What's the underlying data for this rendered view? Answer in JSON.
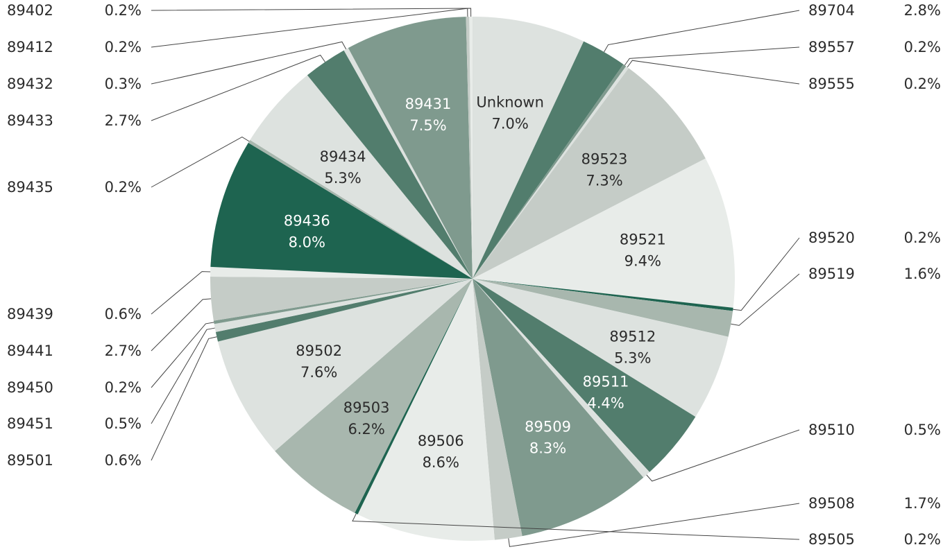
{
  "chart_data": {
    "type": "pie",
    "title": "",
    "slices": [
      {
        "label": "Unknown",
        "pct": "7.0%",
        "value": 7.0,
        "color": "#dde2df",
        "text_color": "#2b2b2b",
        "label_mode": "inside"
      },
      {
        "label": "89704",
        "pct": "2.8%",
        "value": 2.8,
        "color": "#527d6d",
        "text_color": "#2b2b2b",
        "label_mode": "right"
      },
      {
        "label": "89557",
        "pct": "0.2%",
        "value": 0.2,
        "color": "#7f9a8e",
        "text_color": "#2b2b2b",
        "label_mode": "right"
      },
      {
        "label": "89555",
        "pct": "0.2%",
        "value": 0.2,
        "color": "#dde2df",
        "text_color": "#2b2b2b",
        "label_mode": "right"
      },
      {
        "label": "89523",
        "pct": "7.3%",
        "value": 7.3,
        "color": "#c5ccc7",
        "text_color": "#2b2b2b",
        "label_mode": "inside"
      },
      {
        "label": "89521",
        "pct": "9.4%",
        "value": 9.4,
        "color": "#e8ece9",
        "text_color": "#2b2b2b",
        "label_mode": "inside"
      },
      {
        "label": "89520",
        "pct": "0.2%",
        "value": 0.2,
        "color": "#1e6450",
        "text_color": "#2b2b2b",
        "label_mode": "right"
      },
      {
        "label": "89519",
        "pct": "1.6%",
        "value": 1.6,
        "color": "#a8b7ae",
        "text_color": "#2b2b2b",
        "label_mode": "right"
      },
      {
        "label": "89512",
        "pct": "5.3%",
        "value": 5.3,
        "color": "#dde2df",
        "text_color": "#2b2b2b",
        "label_mode": "inside"
      },
      {
        "label": "89511",
        "pct": "4.4%",
        "value": 4.4,
        "color": "#527d6d",
        "text_color": "#ffffff",
        "label_mode": "inside"
      },
      {
        "label": "89510",
        "pct": "0.5%",
        "value": 0.5,
        "color": "#dde2df",
        "text_color": "#2b2b2b",
        "label_mode": "right"
      },
      {
        "label": "89509",
        "pct": "8.3%",
        "value": 8.3,
        "color": "#7f9a8e",
        "text_color": "#ffffff",
        "label_mode": "inside"
      },
      {
        "label": "89508",
        "pct": "1.7%",
        "value": 1.7,
        "color": "#c5ccc7",
        "text_color": "#2b2b2b",
        "label_mode": "right"
      },
      {
        "label": "89506",
        "pct": "8.6%",
        "value": 8.6,
        "color": "#e8ece9",
        "text_color": "#2b2b2b",
        "label_mode": "inside"
      },
      {
        "label": "89505",
        "pct": "0.2%",
        "value": 0.2,
        "color": "#1e6450",
        "text_color": "#2b2b2b",
        "label_mode": "right"
      },
      {
        "label": "89503",
        "pct": "6.2%",
        "value": 6.2,
        "color": "#a8b7ae",
        "text_color": "#2b2b2b",
        "label_mode": "inside"
      },
      {
        "label": "89502",
        "pct": "7.6%",
        "value": 7.6,
        "color": "#dde2df",
        "text_color": "#2b2b2b",
        "label_mode": "inside"
      },
      {
        "label": "89501",
        "pct": "0.6%",
        "value": 0.6,
        "color": "#527d6d",
        "text_color": "#2b2b2b",
        "label_mode": "left"
      },
      {
        "label": "89451",
        "pct": "0.5%",
        "value": 0.5,
        "color": "#dde2df",
        "text_color": "#2b2b2b",
        "label_mode": "left"
      },
      {
        "label": "89450",
        "pct": "0.2%",
        "value": 0.2,
        "color": "#7f9a8e",
        "text_color": "#2b2b2b",
        "label_mode": "left"
      },
      {
        "label": "89441",
        "pct": "2.7%",
        "value": 2.7,
        "color": "#c5ccc7",
        "text_color": "#2b2b2b",
        "label_mode": "left"
      },
      {
        "label": "89439",
        "pct": "0.6%",
        "value": 0.6,
        "color": "#e8ece9",
        "text_color": "#2b2b2b",
        "label_mode": "left"
      },
      {
        "label": "89436",
        "pct": "8.0%",
        "value": 8.0,
        "color": "#1e6450",
        "text_color": "#ffffff",
        "label_mode": "inside"
      },
      {
        "label": "89435",
        "pct": "0.2%",
        "value": 0.2,
        "color": "#a8b7ae",
        "text_color": "#2b2b2b",
        "label_mode": "left"
      },
      {
        "label": "89434",
        "pct": "5.3%",
        "value": 5.3,
        "color": "#dde2df",
        "text_color": "#2b2b2b",
        "label_mode": "inside"
      },
      {
        "label": "89433",
        "pct": "2.7%",
        "value": 2.7,
        "color": "#527d6d",
        "text_color": "#2b2b2b",
        "label_mode": "left"
      },
      {
        "label": "89432",
        "pct": "0.3%",
        "value": 0.3,
        "color": "#dde2df",
        "text_color": "#2b2b2b",
        "label_mode": "left"
      },
      {
        "label": "89431",
        "pct": "7.5%",
        "value": 7.5,
        "color": "#7f9a8e",
        "text_color": "#ffffff",
        "label_mode": "inside"
      },
      {
        "label": "89412",
        "pct": "0.2%",
        "value": 0.2,
        "color": "#c5ccc7",
        "text_color": "#2b2b2b",
        "label_mode": "left"
      },
      {
        "label": "89402",
        "pct": "0.2%",
        "value": 0.2,
        "color": "#e8ece9",
        "text_color": "#2b2b2b",
        "label_mode": "left"
      }
    ],
    "legend": "none",
    "label_style": "outside labels with leader lines for small slices, inside labels for large slices"
  }
}
